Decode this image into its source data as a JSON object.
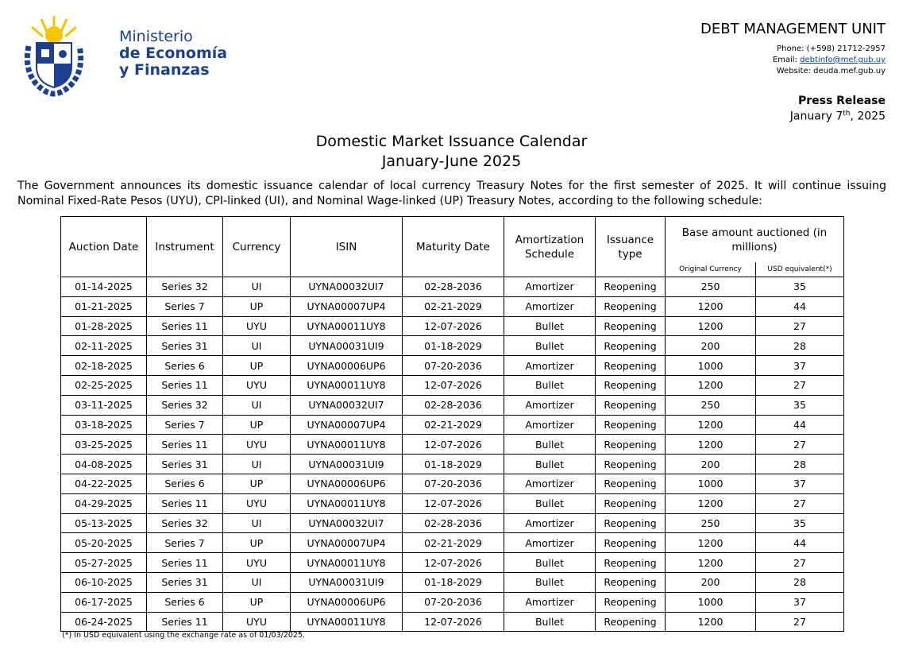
{
  "header": {
    "ministry": [
      "Ministerio",
      "de Economía",
      "y Finanzas"
    ],
    "unit": "DEBT MANAGEMENT UNIT",
    "phone": "Phone: (+598) 21712-2957",
    "email_label": "Email:",
    "email": "debtinfo@mef.gub.uy",
    "website": "Website: deuda.mef.gub.uy",
    "release_type": "Press Release",
    "date_main": "January 7",
    "date_sup": "th",
    "date_year": ", 2025"
  },
  "title": [
    "Domestic Market Issuance Calendar",
    "January-June 2025"
  ],
  "intro": "The Government announces its domestic issuance calendar of local currency Treasury Notes for the first semester of 2025. It will continue issuing Nominal Fixed-Rate Pesos (UYU), CPI-linked (UI), and Nominal Wage-linked (UP) Treasury Notes, according to the following schedule:",
  "table": {
    "columns": [
      "Auction Date",
      "Instrument",
      "Currency",
      "ISIN",
      "Maturity Date",
      "Amortization Schedule",
      "Issuance type"
    ],
    "group_header": "Base amount auctioned (in millions)",
    "sub_columns": [
      "Original Currency",
      "USD equivalent(*)"
    ],
    "rows": [
      [
        "01-14-2025",
        "Series 32",
        "UI",
        "UYNA00032UI7",
        "02-28-2036",
        "Amortizer",
        "Reopening",
        250,
        35
      ],
      [
        "01-21-2025",
        "Series 7",
        "UP",
        "UYNA00007UP4",
        "02-21-2029",
        "Amortizer",
        "Reopening",
        1200,
        44
      ],
      [
        "01-28-2025",
        "Series 11",
        "UYU",
        "UYNA00011UY8",
        "12-07-2026",
        "Bullet",
        "Reopening",
        1200,
        27
      ],
      [
        "02-11-2025",
        "Series 31",
        "UI",
        "UYNA00031UI9",
        "01-18-2029",
        "Bullet",
        "Reopening",
        200,
        28
      ],
      [
        "02-18-2025",
        "Series 6",
        "UP",
        "UYNA00006UP6",
        "07-20-2036",
        "Amortizer",
        "Reopening",
        1000,
        37
      ],
      [
        "02-25-2025",
        "Series 11",
        "UYU",
        "UYNA00011UY8",
        "12-07-2026",
        "Bullet",
        "Reopening",
        1200,
        27
      ],
      [
        "03-11-2025",
        "Series 32",
        "UI",
        "UYNA00032UI7",
        "02-28-2036",
        "Amortizer",
        "Reopening",
        250,
        35
      ],
      [
        "03-18-2025",
        "Series 7",
        "UP",
        "UYNA00007UP4",
        "02-21-2029",
        "Amortizer",
        "Reopening",
        1200,
        44
      ],
      [
        "03-25-2025",
        "Series 11",
        "UYU",
        "UYNA00011UY8",
        "12-07-2026",
        "Bullet",
        "Reopening",
        1200,
        27
      ],
      [
        "04-08-2025",
        "Series 31",
        "UI",
        "UYNA00031UI9",
        "01-18-2029",
        "Bullet",
        "Reopening",
        200,
        28
      ],
      [
        "04-22-2025",
        "Series 6",
        "UP",
        "UYNA00006UP6",
        "07-20-2036",
        "Amortizer",
        "Reopening",
        1000,
        37
      ],
      [
        "04-29-2025",
        "Series 11",
        "UYU",
        "UYNA00011UY8",
        "12-07-2026",
        "Bullet",
        "Reopening",
        1200,
        27
      ],
      [
        "05-13-2025",
        "Series 32",
        "UI",
        "UYNA00032UI7",
        "02-28-2036",
        "Amortizer",
        "Reopening",
        250,
        35
      ],
      [
        "05-20-2025",
        "Series 7",
        "UP",
        "UYNA00007UP4",
        "02-21-2029",
        "Amortizer",
        "Reopening",
        1200,
        44
      ],
      [
        "05-27-2025",
        "Series 11",
        "UYU",
        "UYNA00011UY8",
        "12-07-2026",
        "Bullet",
        "Reopening",
        1200,
        27
      ],
      [
        "06-10-2025",
        "Series 31",
        "UI",
        "UYNA00031UI9",
        "01-18-2029",
        "Bullet",
        "Reopening",
        200,
        28
      ],
      [
        "06-17-2025",
        "Series 6",
        "UP",
        "UYNA00006UP6",
        "07-20-2036",
        "Amortizer",
        "Reopening",
        1000,
        37
      ],
      [
        "06-24-2025",
        "Series 11",
        "UYU",
        "UYNA00011UY8",
        "12-07-2026",
        "Bullet",
        "Reopening",
        1200,
        27
      ]
    ]
  },
  "footnote": "(*) In USD equivalent using the exchange rate as of 01/03/2025."
}
